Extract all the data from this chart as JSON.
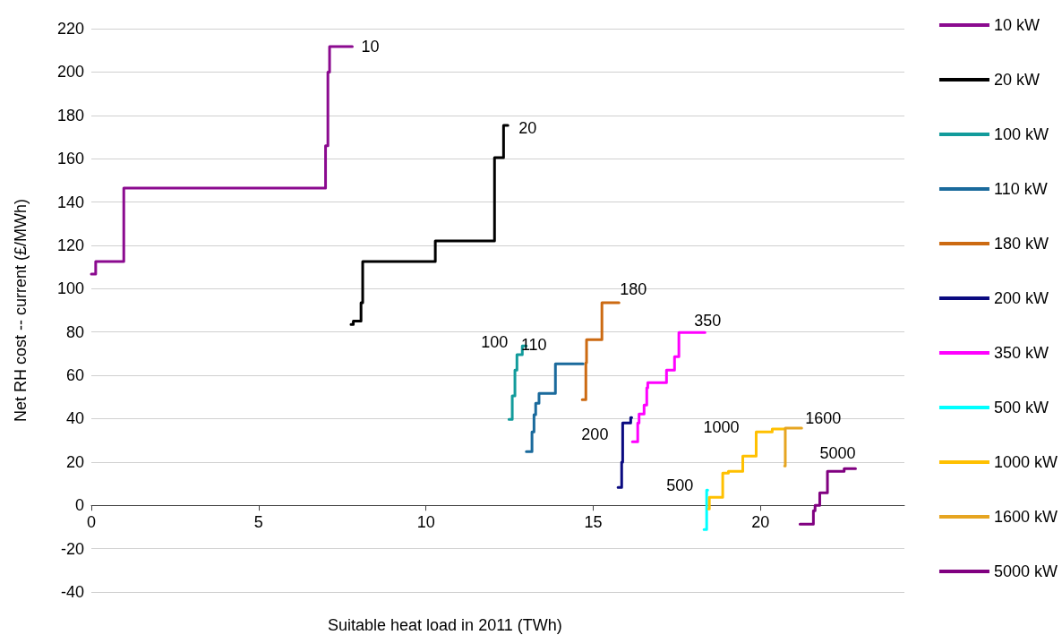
{
  "chart_data": {
    "type": "step",
    "xlabel": "Suitable heat load in 2011 (TWh)",
    "ylabel": "Net RH cost -- current (£/MWh)",
    "xlim": [
      0,
      24.3
    ],
    "xticks": [
      0,
      5,
      10,
      15,
      20
    ],
    "ylim": [
      -40,
      220
    ],
    "yticks": [
      -40,
      -20,
      0,
      20,
      40,
      60,
      80,
      100,
      120,
      140,
      160,
      180,
      200,
      220
    ],
    "grid": "y",
    "legend": "right",
    "marker": "none",
    "line_style": "solid",
    "series": [
      {
        "name": "10 kW",
        "color": "#8b0a8f",
        "x": [
          0,
          0.13,
          0.97,
          7.0,
          7.07,
          7.12,
          7.8
        ],
        "values": [
          106.7,
          112.5,
          146.4,
          166,
          200,
          211.7,
          211.7
        ]
      },
      {
        "name": "20 kW",
        "color": "#000000",
        "x": [
          7.76,
          7.83,
          8.06,
          8.11,
          10.28,
          12.05,
          12.32,
          12.45
        ],
        "values": [
          83.5,
          85,
          93.5,
          112.5,
          122,
          160.5,
          175.4,
          175.4
        ]
      },
      {
        "name": "100 kW",
        "color": "#129b9b",
        "x": [
          12.48,
          12.58,
          12.66,
          12.72,
          12.88,
          13.0
        ],
        "values": [
          39.7,
          50.5,
          62.4,
          69.5,
          73.6,
          73.6
        ]
      },
      {
        "name": "110 kW",
        "color": "#1a6a9c",
        "x": [
          13.0,
          13.17,
          13.23,
          13.28,
          13.38,
          13.87,
          14.7
        ],
        "values": [
          24.8,
          33.9,
          41.8,
          47.1,
          51.7,
          65.3,
          65.3
        ]
      },
      {
        "name": "180 kW",
        "color": "#cc6a12",
        "x": [
          14.67,
          14.78,
          14.8,
          15.26,
          15.77
        ],
        "values": [
          48.8,
          65.8,
          76.5,
          93.5,
          93.5
        ]
      },
      {
        "name": "200 kW",
        "color": "#0a0a80",
        "x": [
          15.74,
          15.85,
          15.88,
          16.12,
          16.15
        ],
        "values": [
          8.3,
          19.9,
          38,
          40.5,
          40.5
        ]
      },
      {
        "name": "350 kW",
        "color": "#ff00ff",
        "x": [
          16.17,
          16.33,
          16.37,
          16.52,
          16.6,
          16.63,
          17.19,
          17.43,
          17.56,
          18.34
        ],
        "values": [
          29.3,
          38,
          42.2,
          46.3,
          54.2,
          56.6,
          62.4,
          68.6,
          79.8,
          79.8
        ]
      },
      {
        "name": "500 kW",
        "color": "#00ffff",
        "x": [
          18.31,
          18.39,
          18.42
        ],
        "values": [
          -11.2,
          7.0,
          7.0
        ]
      },
      {
        "name": "1000 kW",
        "color": "#ffc000",
        "x": [
          18.45,
          18.47,
          18.87,
          19.04,
          19.47,
          19.87,
          20.35,
          20.7
        ],
        "values": [
          -1.7,
          3.7,
          14.9,
          15.7,
          22.7,
          33.9,
          35.2,
          35.2
        ]
      },
      {
        "name": "1600 kW",
        "color": "#e6a521",
        "x": [
          20.72,
          20.74,
          21.23
        ],
        "values": [
          18.2,
          35.6,
          35.6
        ]
      },
      {
        "name": "5000 kW",
        "color": "#800080",
        "x": [
          21.18,
          21.58,
          21.63,
          21.77,
          22.0,
          22.5,
          22.84
        ],
        "values": [
          -8.7,
          -2.5,
          0,
          5.8,
          15.7,
          16.9,
          16.9
        ]
      }
    ],
    "annotations": [
      {
        "text": "10",
        "x": 7.8,
        "y": 211.7
      },
      {
        "text": "20",
        "x": 12.45,
        "y": 175.4
      },
      {
        "text": "100",
        "x": 12.88,
        "y": 73.6
      },
      {
        "text": "110",
        "x": 13.87,
        "y": 65.3
      },
      {
        "text": "180",
        "x": 15.77,
        "y": 93.5
      },
      {
        "text": "200",
        "x": 15.88,
        "y": 38
      },
      {
        "text": "350",
        "x": 18.34,
        "y": 79.8
      },
      {
        "text": "500",
        "x": 18.39,
        "y": 7.0
      },
      {
        "text": "1000",
        "x": 19.87,
        "y": 33.9
      },
      {
        "text": "1600",
        "x": 21.23,
        "y": 35.6
      },
      {
        "text": "5000",
        "x": 22.84,
        "y": 16.9
      }
    ]
  }
}
